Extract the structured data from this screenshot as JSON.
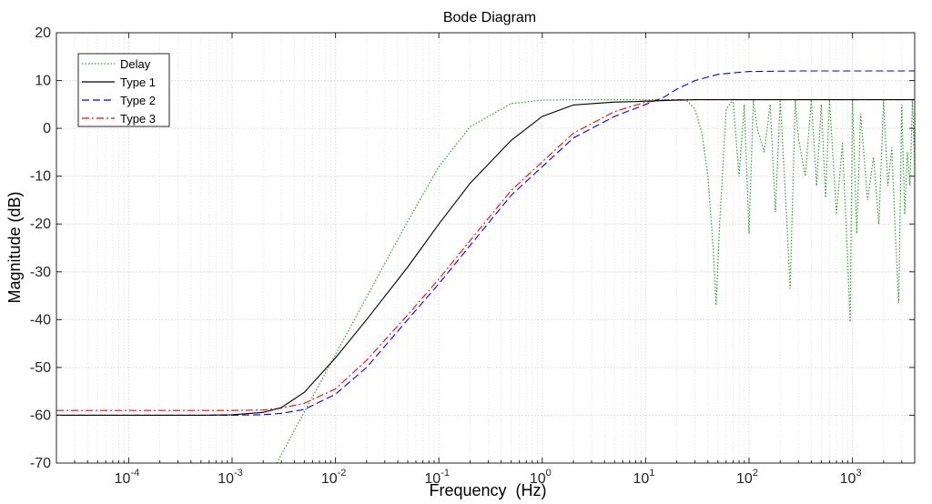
{
  "chart_data": {
    "type": "line",
    "title": "Bode Diagram",
    "xlabel": "Frequency  (Hz)",
    "ylabel": "Magnitude (dB)",
    "xscale": "log",
    "xlim": [
      2e-05,
      4000
    ],
    "ylim": [
      -70,
      20
    ],
    "y_ticks": [
      20,
      10,
      0,
      -10,
      -20,
      -30,
      -40,
      -50,
      -60,
      -70
    ],
    "y_tick_labels": [
      "20",
      "10",
      "0",
      "-10",
      "-20",
      "-30",
      "-40",
      "-50",
      "-60",
      "-70"
    ],
    "x_ticks": [
      {
        "value": 0.0001,
        "base": "10",
        "exp": "-4"
      },
      {
        "value": 0.001,
        "base": "10",
        "exp": "-3"
      },
      {
        "value": 0.01,
        "base": "10",
        "exp": "-2"
      },
      {
        "value": 0.1,
        "base": "10",
        "exp": "-1"
      },
      {
        "value": 1,
        "base": "10",
        "exp": "0"
      },
      {
        "value": 10,
        "base": "10",
        "exp": "1"
      },
      {
        "value": 100,
        "base": "10",
        "exp": "2"
      },
      {
        "value": 1000,
        "base": "10",
        "exp": "3"
      }
    ],
    "grid": "on (major and minor)",
    "legend_position": "top-left",
    "series": [
      {
        "name": "Delay",
        "color": "#2ca02c",
        "style": "dotted",
        "x": [
          0.00271,
          0.003,
          0.005,
          0.01,
          0.02,
          0.05,
          0.1,
          0.2,
          0.5,
          1,
          2,
          5,
          10,
          15,
          20,
          25,
          30,
          35,
          40,
          45,
          48,
          52,
          60,
          70,
          80,
          90,
          100,
          110,
          120,
          140,
          160,
          180,
          200,
          220,
          250,
          280,
          300,
          350,
          400,
          450,
          500,
          550,
          600,
          700,
          800,
          900,
          950,
          1000,
          1100,
          1200,
          1400,
          1600,
          1800,
          2000,
          2200,
          2400,
          2600,
          2800,
          3000,
          3200,
          3400,
          3600,
          3800,
          4000
        ],
        "y": [
          -70,
          -68.2,
          -59.3,
          -47.3,
          -35.3,
          -19.4,
          -8.0,
          0.3,
          5.2,
          5.9,
          6.0,
          6.0,
          6.0,
          6.0,
          6.0,
          5.8,
          4.0,
          -1.0,
          -10.0,
          -25.0,
          -37.0,
          -20.0,
          4.0,
          6.0,
          -10.0,
          5.0,
          -22.0,
          6.0,
          0.0,
          -5.0,
          5.0,
          -17.5,
          6.0,
          -10.0,
          -33.5,
          6.0,
          -2.0,
          -10.0,
          6.0,
          -12.0,
          5.0,
          -14.5,
          6.0,
          -18.0,
          -3.0,
          -28.0,
          -40.5,
          6.0,
          -22.0,
          3.0,
          -15.0,
          -6.0,
          -20.0,
          6.0,
          -12.0,
          -4.0,
          -22.0,
          -36.5,
          5.0,
          -18.0,
          -5.0,
          -12.0,
          6.0,
          -8.0
        ]
      },
      {
        "name": "Type 1",
        "color": "#000000",
        "style": "solid",
        "x": [
          2e-05,
          0.0001,
          0.0005,
          0.001,
          0.002,
          0.003,
          0.005,
          0.01,
          0.02,
          0.05,
          0.1,
          0.2,
          0.5,
          1,
          2,
          5,
          8,
          10,
          15,
          20,
          30,
          50,
          100,
          300,
          1000,
          4000
        ],
        "y": [
          -60.0,
          -60.0,
          -60.0,
          -59.9,
          -59.4,
          -58.4,
          -55.2,
          -48.0,
          -40.0,
          -29.0,
          -20.0,
          -11.5,
          -2.5,
          2.5,
          4.9,
          5.5,
          5.6,
          5.7,
          5.8,
          5.9,
          6.0,
          6.0,
          6.0,
          6.0,
          6.0,
          6.0
        ]
      },
      {
        "name": "Type 2",
        "color": "#0000ff",
        "style": "dashed",
        "x": [
          2e-05,
          0.0001,
          0.0005,
          0.001,
          0.002,
          0.003,
          0.005,
          0.01,
          0.02,
          0.05,
          0.1,
          0.2,
          0.5,
          1,
          2,
          5,
          10,
          15,
          20,
          30,
          50,
          100,
          300,
          1000,
          4000
        ],
        "y": [
          -60.0,
          -60.0,
          -60.0,
          -60.0,
          -59.9,
          -59.6,
          -58.8,
          -55.6,
          -50.0,
          -40.0,
          -32.5,
          -24.5,
          -14.0,
          -8.0,
          -2.0,
          2.5,
          5.0,
          6.5,
          8.2,
          10.0,
          11.3,
          11.9,
          12.0,
          12.0,
          12.0
        ]
      },
      {
        "name": "Type 3",
        "color": "#ff0000",
        "style": "dashdot",
        "x": [
          2e-05,
          0.0001,
          0.0005,
          0.001,
          0.002,
          0.003,
          0.005,
          0.01,
          0.02,
          0.05,
          0.1,
          0.2,
          0.5,
          1,
          2,
          5,
          10,
          15,
          20,
          30,
          50,
          100,
          300,
          1000,
          4000
        ],
        "y": [
          -59.0,
          -59.0,
          -59.0,
          -59.0,
          -58.9,
          -58.5,
          -57.5,
          -54.5,
          -48.5,
          -39.0,
          -31.5,
          -23.5,
          -13.0,
          -7.0,
          -1.0,
          3.5,
          5.5,
          5.9,
          6.0,
          6.0,
          6.0,
          6.0,
          6.0,
          6.0,
          6.0
        ]
      }
    ]
  }
}
